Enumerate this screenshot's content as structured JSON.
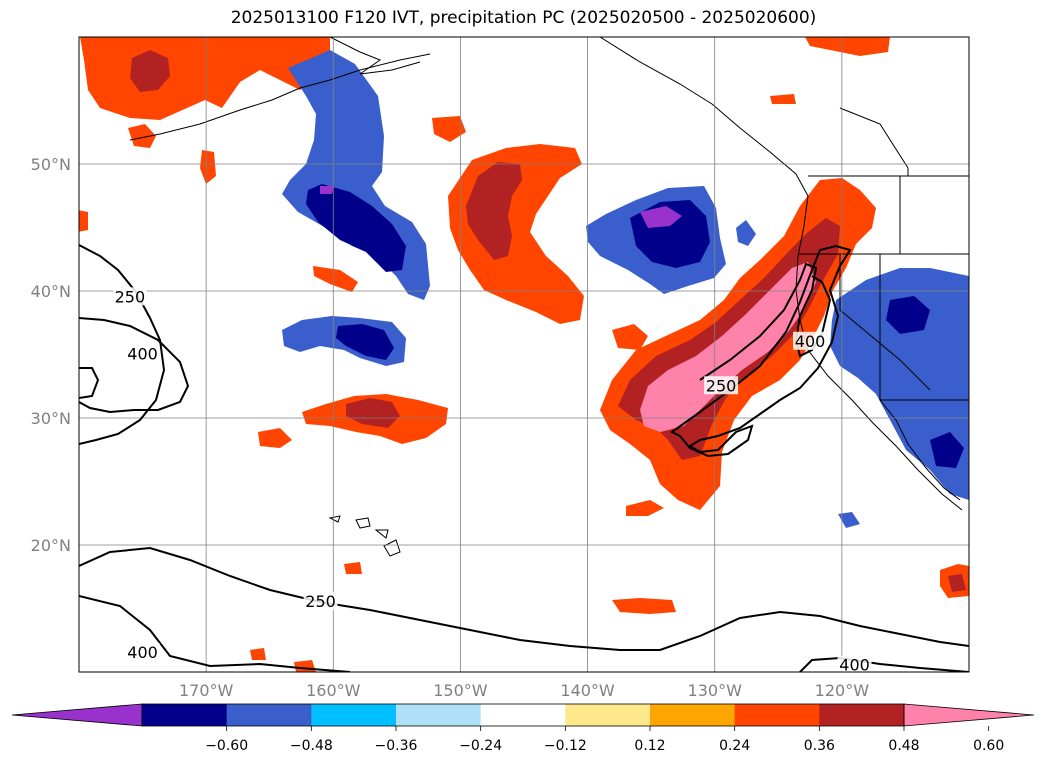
{
  "title": "2025013100 F120 IVT, precipitation PC (2025020500 - 2025020600)",
  "map": {
    "lon_range": [
      -180,
      -110
    ],
    "lat_range": [
      10,
      60
    ],
    "lat_ticks": [
      {
        "value": 20,
        "label": "20°N"
      },
      {
        "value": 30,
        "label": "30°N"
      },
      {
        "value": 40,
        "label": "40°N"
      },
      {
        "value": 50,
        "label": "50°N"
      }
    ],
    "lon_ticks": [
      {
        "value": -170,
        "label": "170°W"
      },
      {
        "value": -160,
        "label": "160°W"
      },
      {
        "value": -150,
        "label": "150°W"
      },
      {
        "value": -140,
        "label": "140°W"
      },
      {
        "value": -130,
        "label": "130°W"
      },
      {
        "value": -120,
        "label": "120°W"
      }
    ],
    "grid": true,
    "ivt_contour_levels": [
      250,
      400
    ],
    "contour_labels": [
      {
        "text": "250",
        "lon": -176,
        "lat": 39.5
      },
      {
        "text": "400",
        "lon": -175,
        "lat": 35
      },
      {
        "text": "250",
        "lon": -161,
        "lat": 15.5
      },
      {
        "text": "400",
        "lon": -175,
        "lat": 11.5
      },
      {
        "text": "250",
        "lon": -129.5,
        "lat": 32.5
      },
      {
        "text": "400",
        "lon": -122.5,
        "lat": 36
      },
      {
        "text": "400",
        "lon": -119,
        "lat": 10.5
      }
    ]
  },
  "colorbar": {
    "ticks": [
      "−0.60",
      "−0.48",
      "−0.36",
      "−0.24",
      "−0.12",
      "0.12",
      "0.24",
      "0.36",
      "0.48",
      "0.60"
    ],
    "colors": [
      "#9932cc",
      "#00008b",
      "#3a5fcd",
      "#00bfff",
      "#b0e0f8",
      "#ffffff",
      "#fde98b",
      "#ffa500",
      "#ff4500",
      "#b22222",
      "#ff82ab"
    ],
    "extend": "both"
  }
}
